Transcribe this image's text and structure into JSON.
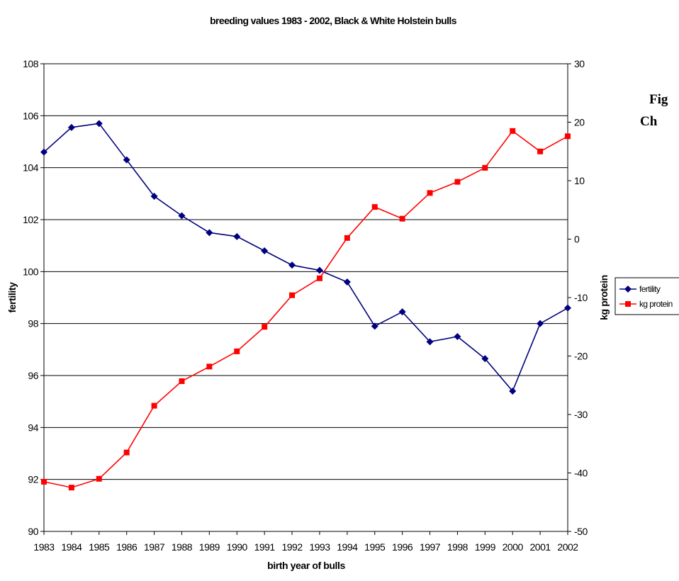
{
  "side_text": [
    "Fig",
    "Ch"
  ],
  "chart_data": {
    "type": "line",
    "title": "breeding values 1983 - 2002, Black & White Holstein bulls",
    "xlabel": "birth year of bulls",
    "ylabel": "fertility",
    "y2label": "kg protein",
    "ylim": [
      90,
      108
    ],
    "y2lim": [
      -50,
      30
    ],
    "yticks": [
      90,
      92,
      94,
      96,
      98,
      100,
      102,
      104,
      106,
      108
    ],
    "y2ticks": [
      -50,
      -40,
      -30,
      -20,
      -10,
      0,
      10,
      20,
      30
    ],
    "categories": [
      "1983",
      "1984",
      "1985",
      "1986",
      "1987",
      "1988",
      "1989",
      "1990",
      "1991",
      "1992",
      "1993",
      "1994",
      "1995",
      "1996",
      "1997",
      "1998",
      "1999",
      "2000",
      "2001",
      "2002"
    ],
    "grid": true,
    "legend_position": "right",
    "series": [
      {
        "name": "fertility",
        "axis": "left",
        "color": "#00007f",
        "marker": "diamond",
        "values": [
          104.6,
          105.55,
          105.7,
          104.3,
          102.9,
          102.15,
          101.5,
          101.35,
          100.8,
          100.25,
          100.05,
          99.6,
          97.9,
          98.45,
          97.3,
          97.5,
          96.65,
          95.4,
          98.0,
          98.6
        ]
      },
      {
        "name": "kg protein",
        "axis": "right",
        "color": "#ff0000",
        "marker": "square",
        "values": [
          -41.5,
          -42.5,
          -41.0,
          -36.5,
          -28.5,
          -24.3,
          -21.8,
          -19.2,
          -15.0,
          -9.6,
          -6.7,
          0.2,
          5.5,
          3.5,
          7.9,
          9.8,
          12.2,
          18.5,
          15.0,
          17.6
        ]
      }
    ]
  }
}
